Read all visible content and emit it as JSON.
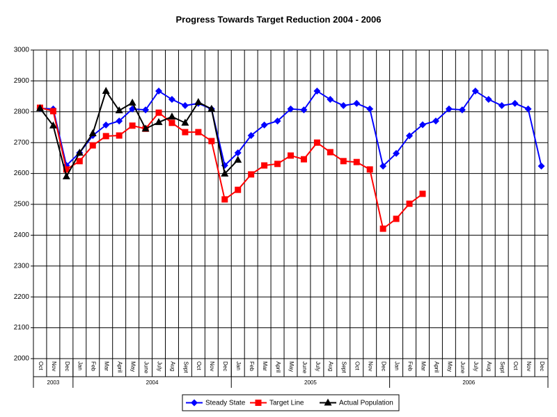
{
  "chart_data": {
    "type": "line",
    "title": "Progress Towards Target Reduction 2004  - 2006",
    "category_groups": [
      {
        "label": "2003",
        "categories": [
          "Oct",
          "Nov",
          "Dec"
        ]
      },
      {
        "label": "2004",
        "categories": [
          "Jan",
          "Feb",
          "Mar",
          "April",
          "May",
          "June",
          "July",
          "Aug",
          "Sept",
          "Oct",
          "Nov",
          "Dec"
        ]
      },
      {
        "label": "2005",
        "categories": [
          "Jan",
          "Feb",
          "Mar",
          "April",
          "May",
          "June",
          "July",
          "Aug",
          "Sept",
          "Oct",
          "Nov",
          "Dec"
        ]
      },
      {
        "label": "2006",
        "categories": [
          "Jan",
          "Feb",
          "Mar",
          "April",
          "May",
          "June",
          "July",
          "Aug",
          "Sept",
          "Oct",
          "Nov",
          "Dec"
        ]
      }
    ],
    "series": [
      {
        "name": "Steady State",
        "color": "#0000ff",
        "marker": "diamond",
        "values": [
          2811,
          2809,
          2626,
          2667,
          2723,
          2757,
          2770,
          2809,
          2806,
          2867,
          2840,
          2820,
          2827,
          2809,
          2626,
          2667,
          2723,
          2757,
          2770,
          2809,
          2806,
          2867,
          2840,
          2820,
          2827,
          2809,
          2624,
          2665,
          2722,
          2758,
          2770,
          2809,
          2806,
          2867,
          2840,
          2820,
          2827,
          2809,
          2624
        ]
      },
      {
        "name": "Target Line",
        "color": "#ff0000",
        "marker": "square",
        "values": [
          2813,
          2802,
          2613,
          2640,
          2691,
          2721,
          2723,
          2755,
          2745,
          2797,
          2764,
          2734,
          2734,
          2705,
          2516,
          2547,
          2597,
          2626,
          2631,
          2658,
          2646,
          2700,
          2669,
          2640,
          2637,
          2613,
          2421,
          2453,
          2502,
          2534,
          null,
          null,
          null,
          null,
          null,
          null,
          null,
          null,
          null
        ]
      },
      {
        "name": "Actual Population",
        "color": "#000000",
        "marker": "triangle",
        "values": [
          2811,
          2755,
          2590,
          2667,
          2730,
          2867,
          2804,
          2829,
          2745,
          2766,
          2784,
          2764,
          2831,
          2809,
          2599,
          2644,
          null,
          null,
          null,
          null,
          null,
          null,
          null,
          null,
          null,
          null,
          null,
          null,
          null,
          null,
          null,
          null,
          null,
          null,
          null,
          null,
          null,
          null,
          null
        ]
      }
    ],
    "ylim": [
      2000,
      3000
    ],
    "yticks": [
      2000,
      2100,
      2200,
      2300,
      2400,
      2500,
      2600,
      2700,
      2800,
      2900,
      3000
    ],
    "grid": true,
    "legend": "bottom"
  }
}
